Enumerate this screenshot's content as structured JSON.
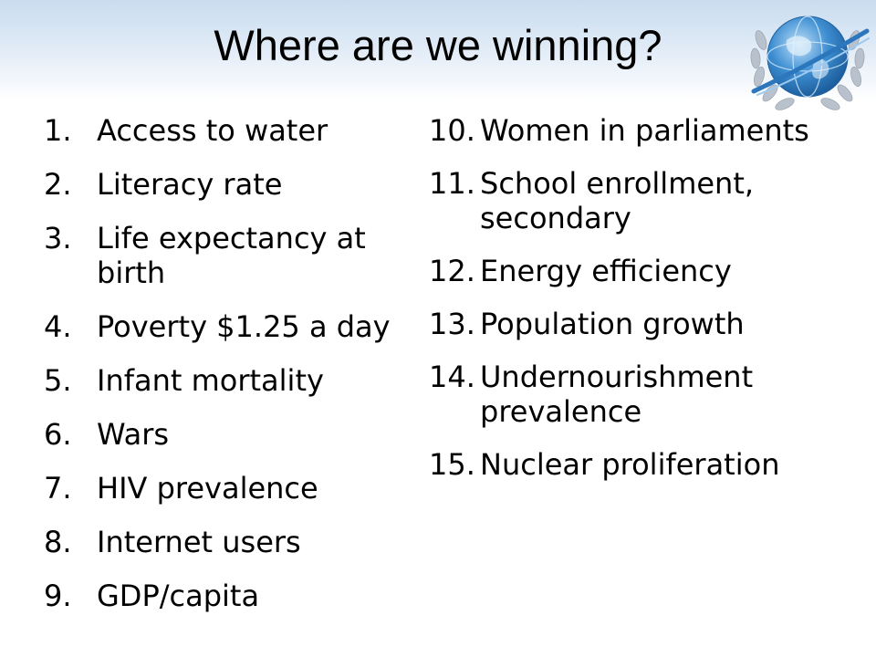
{
  "slide": {
    "title": "Where are we winning?"
  },
  "logo": {
    "icon": "un-globe-emblem-icon",
    "colors": {
      "globe": "#3d8ed1",
      "wreath": "#b9c2cc"
    }
  },
  "list_left": [
    {
      "num": "1.",
      "text": "Access to water"
    },
    {
      "num": "2.",
      "text": "Literacy rate"
    },
    {
      "num": "3.",
      "text": "Life expectancy at birth"
    },
    {
      "num": "4.",
      "text": "Poverty $1.25 a day"
    },
    {
      "num": "5.",
      "text": "Infant mortality"
    },
    {
      "num": "6.",
      "text": "Wars"
    },
    {
      "num": "7.",
      "text": "HIV prevalence"
    },
    {
      "num": "8.",
      "text": "Internet users"
    },
    {
      "num": "9.",
      "text": "GDP/capita"
    }
  ],
  "list_right": [
    {
      "num": "10.",
      "text": "Women in parliaments"
    },
    {
      "num": "11.",
      "text": "School enrollment, secondary"
    },
    {
      "num": "12.",
      "text": "Energy efficiency"
    },
    {
      "num": "13.",
      "text": "Population growth"
    },
    {
      "num": "14.",
      "text": "Undernourishment prevalence"
    },
    {
      "num": "15.",
      "text": "Nuclear proliferation"
    }
  ]
}
